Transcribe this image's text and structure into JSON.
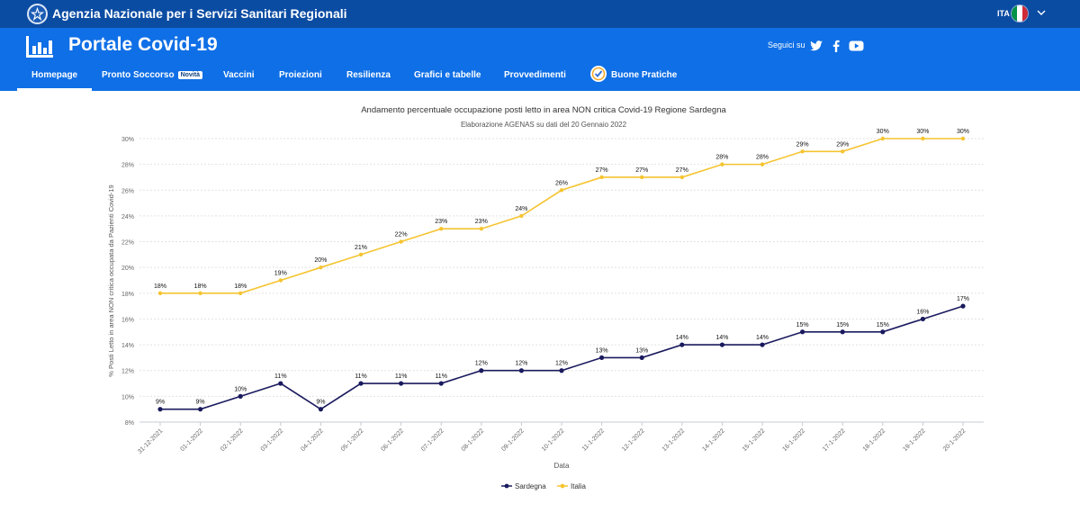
{
  "topbar": {
    "agency": "Agenzia Nazionale per i Servizi Sanitari Regionali",
    "lang": "ITA"
  },
  "header": {
    "portal_title": "Portale Covid-19",
    "follow_label": "Seguici su"
  },
  "nav": {
    "items": [
      "Homepage",
      "Pronto Soccorso",
      "Vaccini",
      "Proiezioni",
      "Resilienza",
      "Grafici e tabelle",
      "Provvedimenti",
      "Buone Pratiche"
    ],
    "badge": "Novità"
  },
  "colors": {
    "sardegna": "#1a1a5e",
    "italia": "#f5c431",
    "topbar": "#0b4ca3",
    "header": "#0f6fe6"
  },
  "chart_data": {
    "type": "line",
    "title": "Andamento percentuale occupazione posti letto in area NON critica Covid-19 Regione Sardegna",
    "subtitle": "Elaborazione AGENAS su dati del 20 Gennaio 2022",
    "xlabel": "Data",
    "ylabel": "% Posti Letto in area NON critica occupata da Pazienti Covid-19",
    "ylim": [
      8,
      30
    ],
    "yticks": [
      "8%",
      "10%",
      "12%",
      "14%",
      "16%",
      "18%",
      "20%",
      "22%",
      "24%",
      "26%",
      "28%",
      "30%"
    ],
    "categories": [
      "31-12-2021",
      "01-1-2022",
      "02-1-2022",
      "03-1-2022",
      "04-1-2022",
      "05-1-2022",
      "06-1-2022",
      "07-1-2022",
      "08-1-2022",
      "09-1-2022",
      "10-1-2022",
      "11-1-2022",
      "12-1-2022",
      "13-1-2022",
      "14-1-2022",
      "15-1-2022",
      "16-1-2022",
      "17-1-2022",
      "18-1-2022",
      "19-1-2022",
      "20-1-2022"
    ],
    "series": [
      {
        "name": "Sardegna",
        "values": [
          9,
          9,
          10,
          11,
          9,
          11,
          11,
          11,
          12,
          12,
          12,
          13,
          13,
          14,
          14,
          14,
          15,
          15,
          15,
          16,
          17
        ]
      },
      {
        "name": "Italia",
        "values": [
          18,
          18,
          18,
          19,
          20,
          21,
          22,
          23,
          23,
          24,
          26,
          27,
          27,
          27,
          28,
          28,
          29,
          29,
          30,
          30,
          30
        ]
      }
    ],
    "legend": "bottom-center"
  }
}
